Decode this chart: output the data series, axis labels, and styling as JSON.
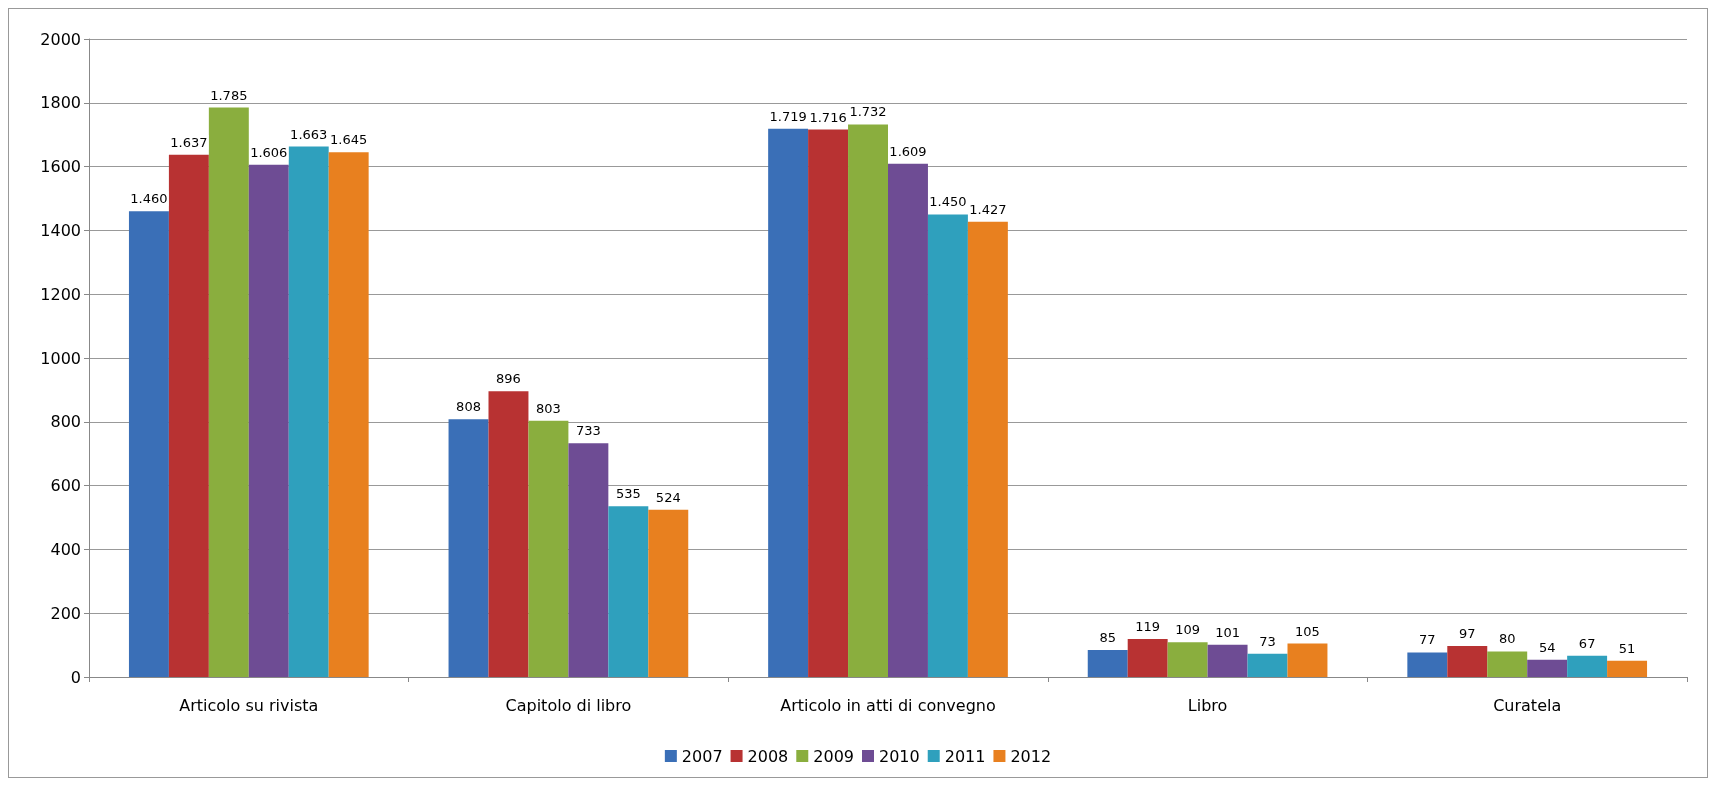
{
  "chart_data": {
    "type": "bar",
    "categories": [
      "Articolo su rivista",
      "Capitolo di libro",
      "Articolo in atti di convegno",
      "Libro",
      "Curatela"
    ],
    "series": [
      {
        "name": "2007",
        "color": "#3a6fb7",
        "values": [
          1460,
          808,
          1719,
          85,
          77
        ],
        "value_labels": [
          "1.460",
          "808",
          "1.719",
          "85",
          "77"
        ]
      },
      {
        "name": "2008",
        "color": "#b83232",
        "values": [
          1637,
          896,
          1716,
          119,
          97
        ],
        "value_labels": [
          "1.637",
          "896",
          "1.716",
          "119",
          "97"
        ]
      },
      {
        "name": "2009",
        "color": "#8aae3e",
        "values": [
          1785,
          803,
          1732,
          109,
          80
        ],
        "value_labels": [
          "1.785",
          "803",
          "1.732",
          "109",
          "80"
        ]
      },
      {
        "name": "2010",
        "color": "#6e4c94",
        "values": [
          1606,
          733,
          1609,
          101,
          54
        ],
        "value_labels": [
          "1.606",
          "733",
          "1.609",
          "101",
          "54"
        ]
      },
      {
        "name": "2011",
        "color": "#2fa0bd",
        "values": [
          1663,
          535,
          1450,
          73,
          67
        ],
        "value_labels": [
          "1.663",
          "535",
          "1.450",
          "73",
          "67"
        ]
      },
      {
        "name": "2012",
        "color": "#e8801f",
        "values": [
          1645,
          524,
          1427,
          105,
          51
        ],
        "value_labels": [
          "1.645",
          "524",
          "1.427",
          "105",
          "51"
        ]
      }
    ],
    "ylim": [
      0,
      2000
    ],
    "yticks": [
      0,
      200,
      400,
      600,
      800,
      1000,
      1200,
      1400,
      1600,
      1800,
      2000
    ],
    "grid": "y",
    "legend": "bottom"
  }
}
